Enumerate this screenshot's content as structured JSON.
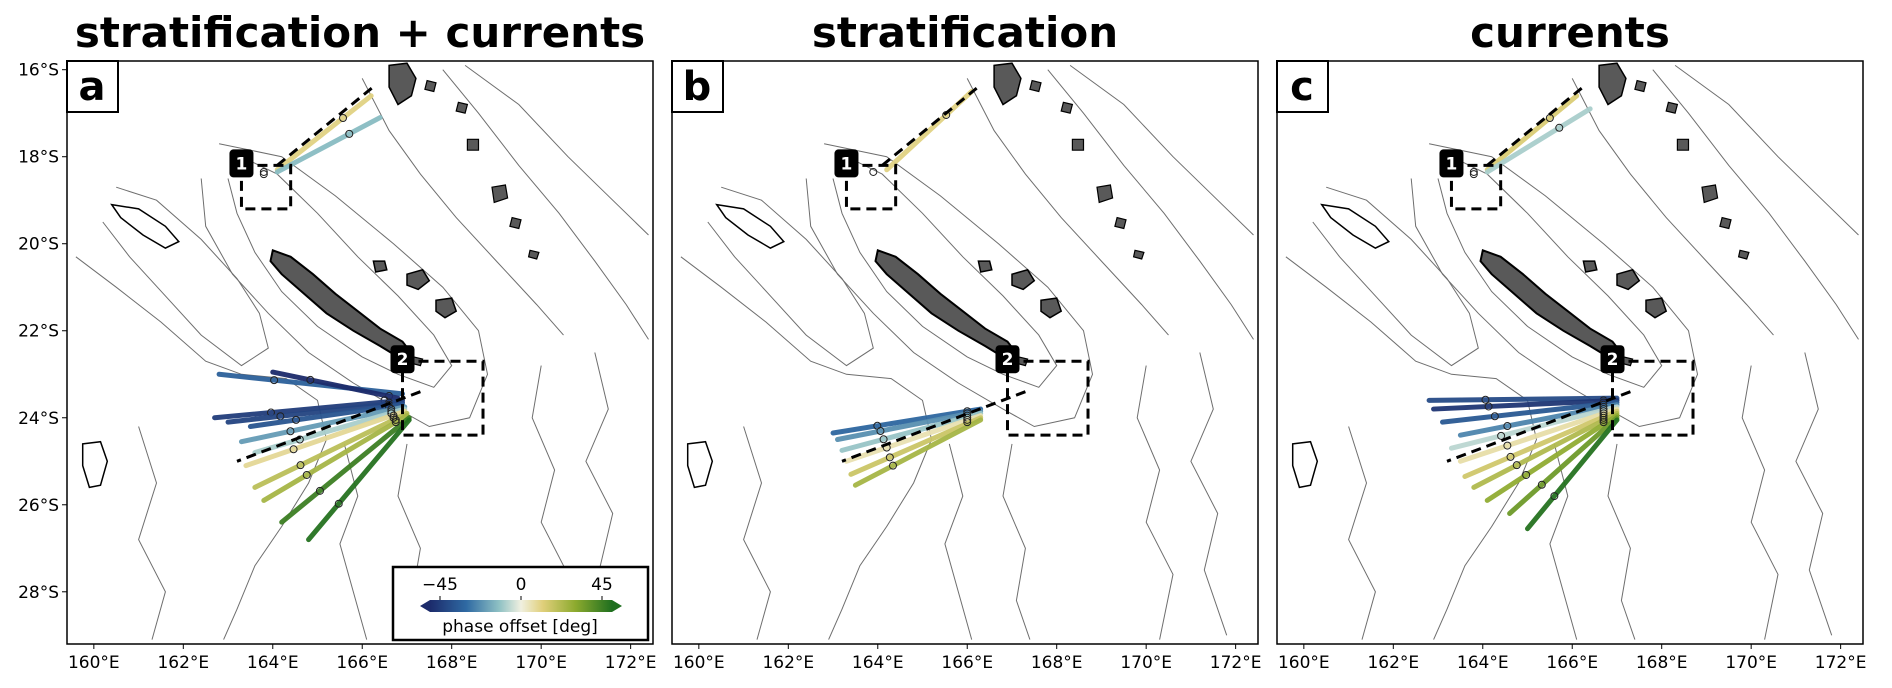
{
  "chart_data": {
    "type": "map",
    "panels": [
      {
        "id": "a",
        "title": "stratification + currents"
      },
      {
        "id": "b",
        "title": "stratification"
      },
      {
        "id": "c",
        "title": "currents"
      }
    ],
    "x_ticks": [
      "160°E",
      "162°E",
      "164°E",
      "166°E",
      "168°E",
      "170°E",
      "172°E"
    ],
    "x_tick_values": [
      160,
      162,
      164,
      166,
      168,
      170,
      172
    ],
    "y_ticks": [
      "16°S",
      "18°S",
      "20°S",
      "22°S",
      "24°S",
      "26°S",
      "28°S"
    ],
    "y_tick_values": [
      -16,
      -18,
      -20,
      -22,
      -24,
      -26,
      -28
    ],
    "xlim": [
      159.4,
      172.5
    ],
    "ylim": [
      -29.2,
      -15.8
    ],
    "boxes": [
      {
        "label": "1",
        "lon": [
          163.3,
          164.4
        ],
        "lat": [
          -19.2,
          -18.2
        ]
      },
      {
        "label": "2",
        "lon": [
          166.9,
          168.7
        ],
        "lat": [
          -24.4,
          -22.7
        ]
      }
    ],
    "colorbar": {
      "ticks": [
        "−45",
        "0",
        "45"
      ],
      "tick_values": [
        -45,
        0,
        45
      ],
      "label": "phase offset [deg]"
    },
    "colors": {
      "land": "#595959",
      "coast": "#000000",
      "contour": "#6e6e6e",
      "phase_neg": "#1c2b6b",
      "phase_mid": "#f0f0e0",
      "phase_pos": "#1f6f1f"
    }
  }
}
